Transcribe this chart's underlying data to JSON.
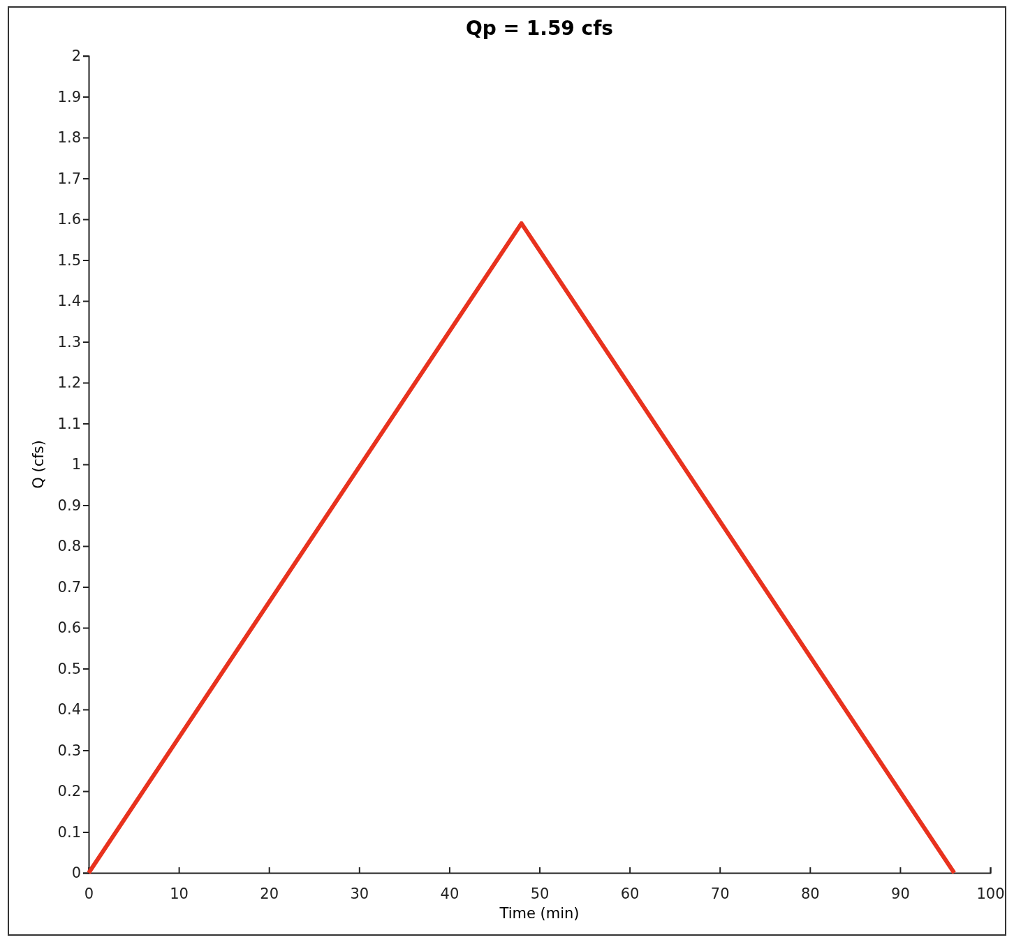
{
  "chart_data": {
    "type": "line",
    "title": "Qp = 1.59 cfs",
    "xlabel": "Time (min)",
    "ylabel": "Q (cfs)",
    "x": [
      0,
      48,
      96
    ],
    "series": [
      {
        "color": "#e8321e",
        "values": [
          0,
          1.59,
          0
        ]
      }
    ],
    "xlim": [
      0,
      100
    ],
    "xticks": [
      0,
      10,
      20,
      30,
      40,
      50,
      60,
      70,
      80,
      90,
      100
    ],
    "ylim": [
      0,
      2
    ],
    "yticks": [
      0,
      0.1,
      0.2,
      0.3,
      0.4,
      0.5,
      0.6,
      0.7,
      0.8,
      0.9,
      1,
      1.1,
      1.2,
      1.3,
      1.4,
      1.5,
      1.6,
      1.7,
      1.8,
      1.9,
      2
    ],
    "marker": "none",
    "line_style": "solid"
  }
}
